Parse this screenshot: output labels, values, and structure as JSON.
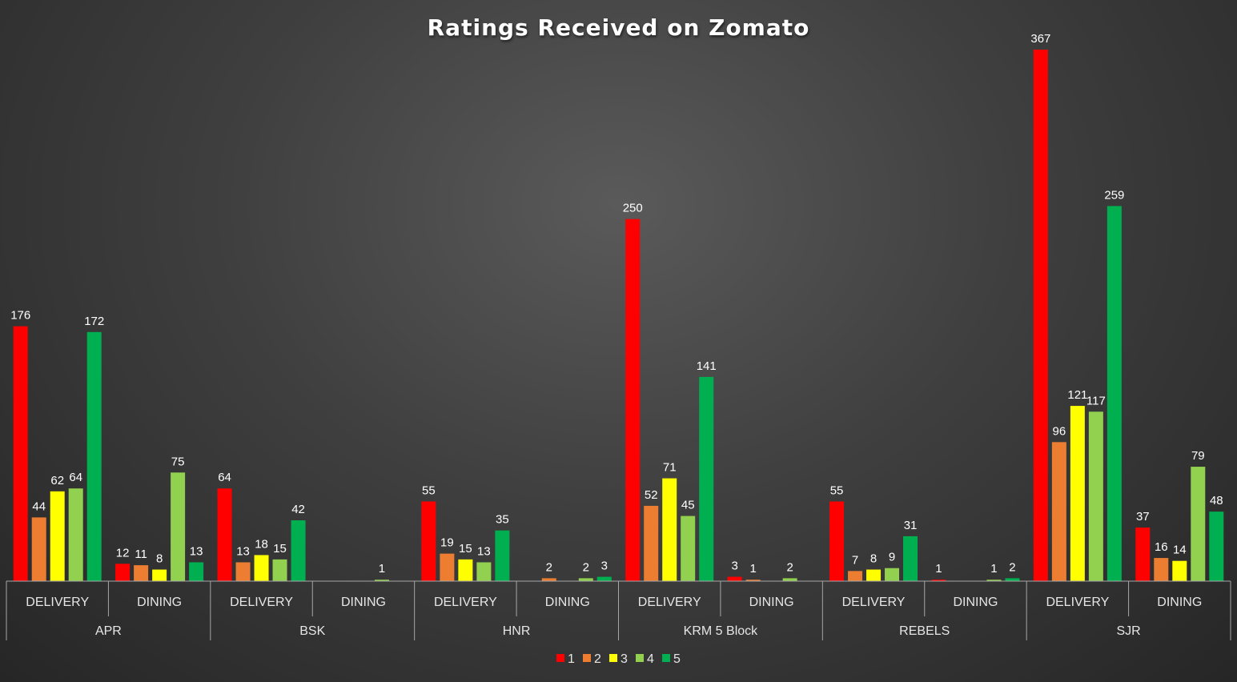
{
  "chart_data": {
    "type": "bar",
    "title": "Ratings Received on Zomato",
    "groups": [
      {
        "outlet": "APR",
        "subgroups": [
          {
            "label": "DELIVERY",
            "values": [
              176,
              44,
              62,
              64,
              172
            ]
          },
          {
            "label": "DINING",
            "values": [
              12,
              11,
              8,
              75,
              13
            ]
          }
        ]
      },
      {
        "outlet": "BSK",
        "subgroups": [
          {
            "label": "DELIVERY",
            "values": [
              64,
              13,
              18,
              15,
              42
            ]
          },
          {
            "label": "DINING",
            "values": [
              null,
              null,
              null,
              1,
              null
            ]
          }
        ]
      },
      {
        "outlet": "HNR",
        "subgroups": [
          {
            "label": "DELIVERY",
            "values": [
              55,
              19,
              15,
              13,
              35
            ]
          },
          {
            "label": "DINING",
            "values": [
              null,
              2,
              null,
              2,
              3
            ]
          }
        ]
      },
      {
        "outlet": "KRM 5 Block",
        "subgroups": [
          {
            "label": "DELIVERY",
            "values": [
              250,
              52,
              71,
              45,
              141
            ]
          },
          {
            "label": "DINING",
            "values": [
              3,
              1,
              null,
              2,
              null
            ]
          }
        ]
      },
      {
        "outlet": "REBELS",
        "subgroups": [
          {
            "label": "DELIVERY",
            "values": [
              55,
              7,
              8,
              9,
              31
            ]
          },
          {
            "label": "DINING",
            "values": [
              1,
              null,
              null,
              1,
              2
            ]
          }
        ]
      },
      {
        "outlet": "SJR",
        "subgroups": [
          {
            "label": "DELIVERY",
            "values": [
              367,
              96,
              121,
              117,
              259
            ]
          },
          {
            "label": "DINING",
            "values": [
              37,
              16,
              14,
              79,
              48
            ]
          }
        ]
      }
    ],
    "series": [
      {
        "name": "1",
        "color": "#ff0000"
      },
      {
        "name": "2",
        "color": "#ed7d31"
      },
      {
        "name": "3",
        "color": "#ffff00"
      },
      {
        "name": "4",
        "color": "#92d050"
      },
      {
        "name": "5",
        "color": "#00b050"
      }
    ],
    "ylim": [
      0,
      370
    ],
    "grid": false,
    "legend_position": "bottom"
  }
}
